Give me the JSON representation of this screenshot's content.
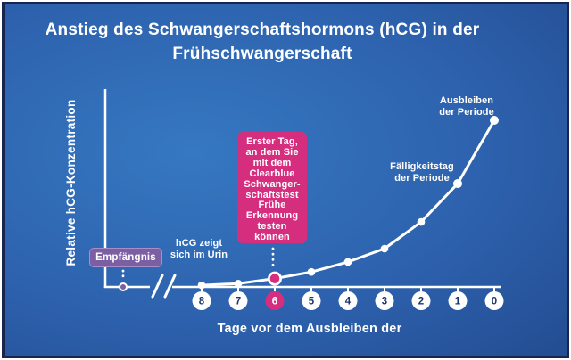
{
  "title": {
    "line1": "Anstieg des Schwangerschaftshormons (hCG) in der",
    "line2": "Frühschwangerschaft"
  },
  "labels": {
    "y_axis": "Relative hCG-Konzentration",
    "x_axis": "Tage vor dem Ausbleiben der",
    "conception": "Empfängnis",
    "hcg_urine": "hCG zeigt\nsich im Urin",
    "test_day": "Erster Tag,\nan dem Sie\nmit dem\nClearblue\nSchwanger-\nschaftstest\nFrühe\nErkennung\ntesten\nkönnen",
    "due_date": "Fälligkeitstag\nder Periode",
    "missed_period": "Ausbleiben\nder Periode"
  },
  "colors": {
    "accent_pink": "#d62e7e",
    "accent_purple": "#7c5fa3",
    "tick_number_navy": "#1d3667",
    "frame_navy": "#19254d",
    "background_center_blue": "#3678c2",
    "background_edge_blue": "#1c3a77",
    "line_white": "#ffffff"
  },
  "chart_data": {
    "type": "line",
    "title": "Anstieg des Schwangerschaftshormons (hCG) in der Frühschwangerschaft",
    "xlabel": "Tage vor dem Ausbleiben der",
    "ylabel": "Relative hCG-Konzentration",
    "x_tick_labels": [
      "8",
      "7",
      "6",
      "5",
      "4",
      "3",
      "2",
      "1",
      "0"
    ],
    "x_axis_break_before_day": 8,
    "highlighted_day": 6,
    "ylim": [
      0,
      1
    ],
    "grid": false,
    "series": [
      {
        "name": "Relative hCG-Konzentration",
        "points": [
          {
            "day": 8,
            "value": 0.01
          },
          {
            "day": 7,
            "value": 0.02
          },
          {
            "day": 6,
            "value": 0.05
          },
          {
            "day": 5,
            "value": 0.09
          },
          {
            "day": 4,
            "value": 0.15
          },
          {
            "day": 3,
            "value": 0.23
          },
          {
            "day": 2,
            "value": 0.39
          },
          {
            "day": 1,
            "value": 0.62
          },
          {
            "day": 0,
            "value": 1.0
          }
        ]
      }
    ],
    "annotations": [
      {
        "label": "Empfängnis",
        "attached_to": "conception point on axis, before axis break"
      },
      {
        "label": "hCG zeigt sich im Urin",
        "attached_to": "day 8"
      },
      {
        "label": "Erster Tag, an dem Sie mit dem Clearblue Schwangerschaftstest Frühe Erkennung testen können",
        "attached_to": "day 6"
      },
      {
        "label": "Fälligkeitstag der Periode",
        "attached_to": "day 1"
      },
      {
        "label": "Ausbleiben der Periode",
        "attached_to": "day 0"
      }
    ]
  }
}
